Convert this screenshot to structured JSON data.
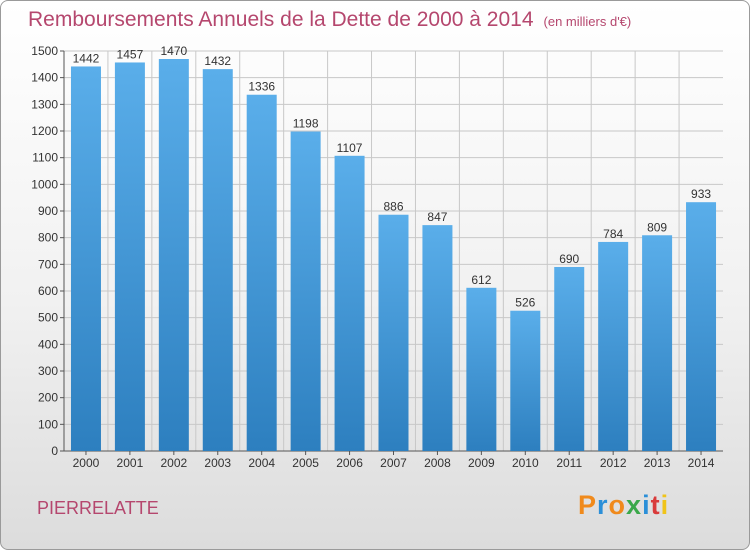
{
  "title": "Remboursements Annuels de la Dette de 2000 à 2014",
  "unit": "(en milliers d'€)",
  "commune": "PIERRELATTE",
  "logo": {
    "letters": [
      "P",
      "r",
      "o",
      "x",
      "i",
      "t",
      "i"
    ],
    "colors": [
      "#f08a1c",
      "#2b8fd8",
      "#f08a1c",
      "#3aa84a",
      "#2b8fd8",
      "#d93b3b",
      "#f0c419"
    ]
  },
  "colors": {
    "bar_light": "#5aaeea",
    "bar_dark": "#2d7fbf",
    "grid": "#c8c8c8",
    "text": "#333333",
    "title": "#b5476e"
  },
  "chart_data": {
    "type": "bar",
    "title": "Remboursements Annuels de la Dette de 2000 à 2014",
    "xlabel": "",
    "ylabel": "",
    "ylim": [
      0,
      1500
    ],
    "ytick_step": 100,
    "grid": true,
    "categories": [
      "2000",
      "2001",
      "2002",
      "2003",
      "2004",
      "2005",
      "2006",
      "2007",
      "2008",
      "2009",
      "2010",
      "2011",
      "2012",
      "2013",
      "2014"
    ],
    "values": [
      1442,
      1457,
      1470,
      1432,
      1336,
      1198,
      1107,
      886,
      847,
      612,
      526,
      690,
      784,
      809,
      933
    ]
  }
}
